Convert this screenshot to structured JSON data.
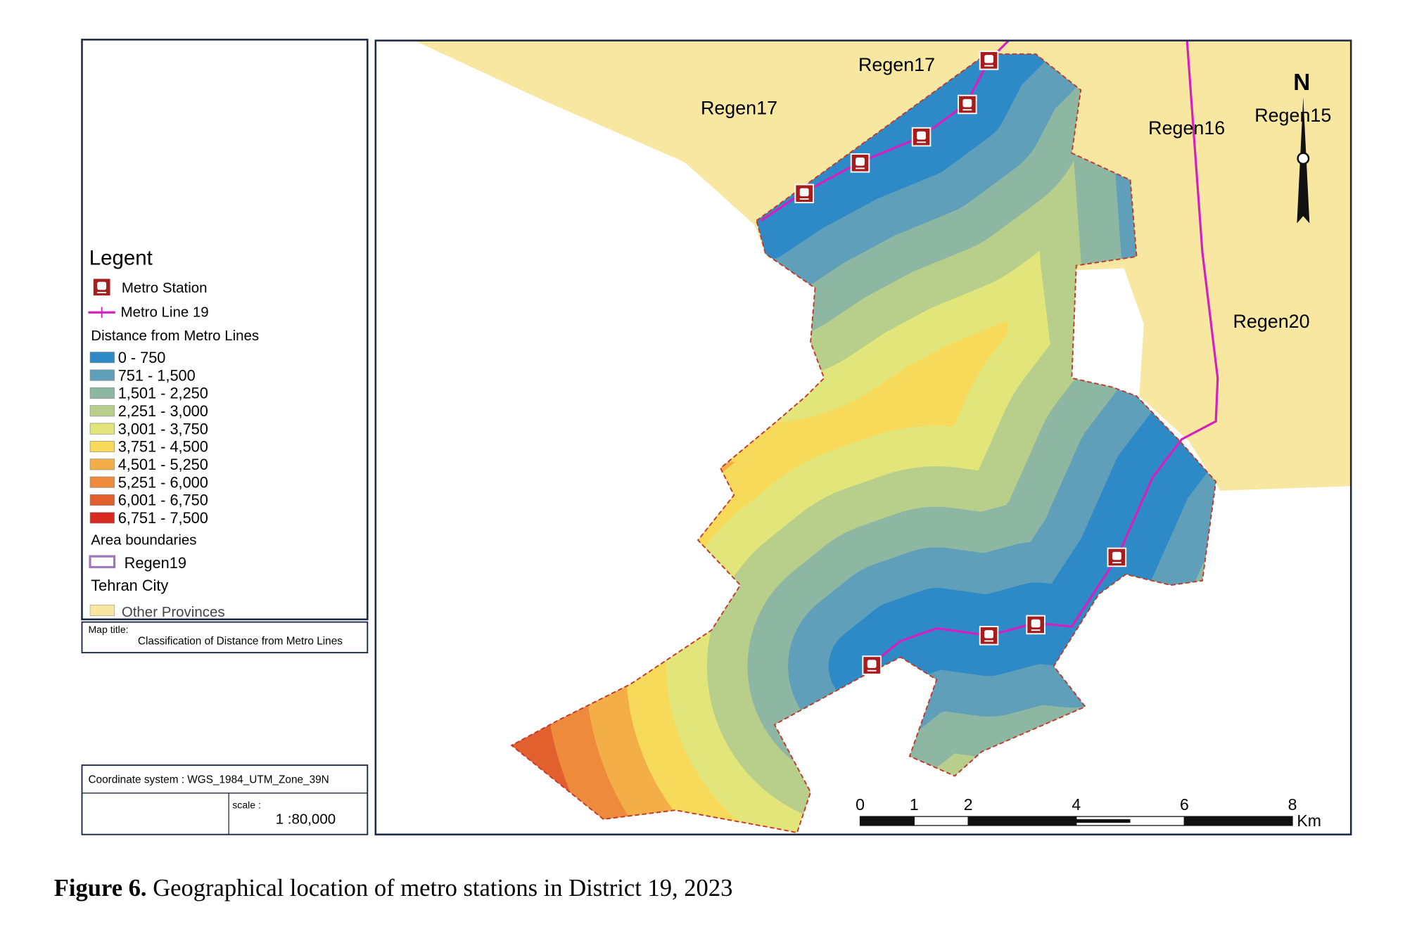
{
  "legend": {
    "title": "Legent",
    "station": "Metro Station",
    "line": "Metro Line 19",
    "distance_title": "Distance from Metro Lines",
    "classes": [
      {
        "label": "0 - 750",
        "color": "#2e8ac6"
      },
      {
        "label": "751 - 1,500",
        "color": "#5f9fba"
      },
      {
        "label": "1,501 - 2,250",
        "color": "#8db7a2"
      },
      {
        "label": "2,251 - 3,000",
        "color": "#b8cf8c"
      },
      {
        "label": "3,001 - 3,750",
        "color": "#e1e57a"
      },
      {
        "label": "3,751 - 4,500",
        "color": "#f7da5a"
      },
      {
        "label": "4,501 - 5,250",
        "color": "#f3ae48"
      },
      {
        "label": "5,251 - 6,000",
        "color": "#ee8a3c"
      },
      {
        "label": "6,001 - 6,750",
        "color": "#e2602e"
      },
      {
        "label": "6,751 - 7,500",
        "color": "#d92a22"
      }
    ],
    "area_title": "Area boundaries",
    "region": "Regen19",
    "city": "Tehran City",
    "other": "Other Provinces"
  },
  "map_title_label": "Map title:",
  "map_title": "Classification of Distance from Metro Lines",
  "coordinate_system": "Coordinate system : WGS_1984_UTM_Zone_39N",
  "scale_label": "scale :",
  "scale": "1 :80,000",
  "map": {
    "labels": [
      "Regen17",
      "Regen17",
      "Regen16",
      "Regen15",
      "Regen20"
    ],
    "north": "N"
  },
  "scale_bar": {
    "ticks": [
      0,
      1,
      2,
      4,
      6,
      8
    ],
    "unit": "Km"
  },
  "caption": {
    "label": "Figure 6.",
    "text": "Geographical location of metro stations in District 19, 2023"
  }
}
